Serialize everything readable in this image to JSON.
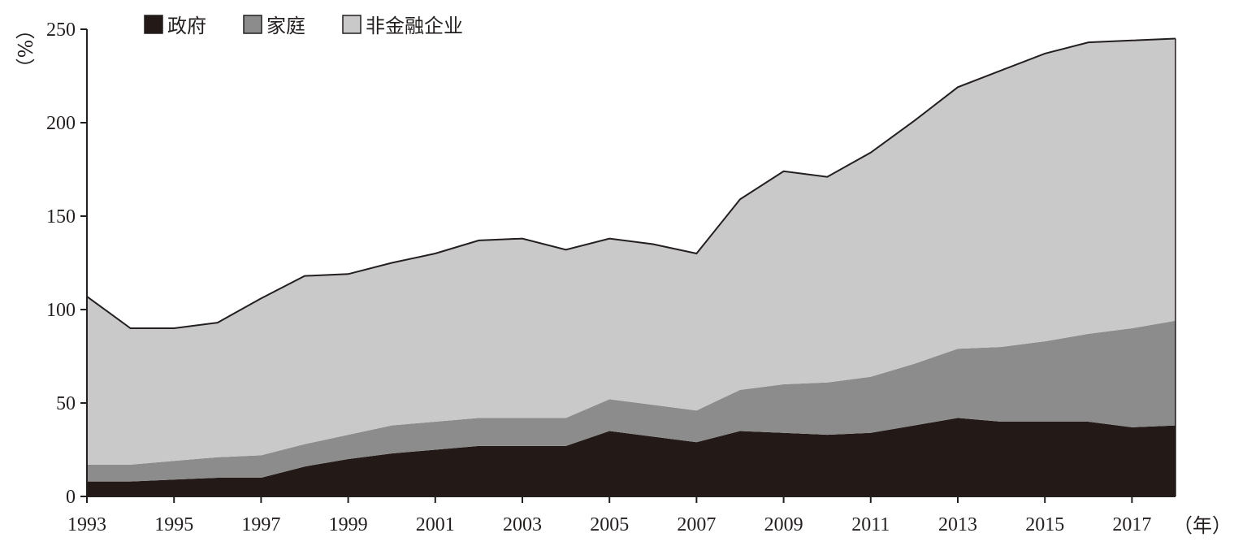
{
  "chart_data": {
    "type": "area",
    "stacked": true,
    "x": [
      1993,
      1994,
      1995,
      1996,
      1997,
      1998,
      1999,
      2000,
      2001,
      2002,
      2003,
      2004,
      2005,
      2006,
      2007,
      2008,
      2009,
      2010,
      2011,
      2012,
      2013,
      2014,
      2015,
      2016,
      2017,
      2018
    ],
    "series": [
      {
        "name": "政府",
        "color": "#231a18",
        "values": [
          8,
          8,
          9,
          10,
          10,
          16,
          20,
          23,
          25,
          27,
          27,
          27,
          35,
          32,
          29,
          35,
          34,
          33,
          34,
          38,
          42,
          40,
          40,
          40,
          37,
          38
        ]
      },
      {
        "name": "家庭",
        "color": "#8c8c8c",
        "values": [
          9,
          9,
          10,
          11,
          12,
          12,
          13,
          15,
          15,
          15,
          15,
          15,
          17,
          17,
          17,
          22,
          26,
          28,
          30,
          33,
          37,
          40,
          43,
          47,
          53,
          56
        ]
      },
      {
        "name": "非金融企业",
        "color": "#c9c9c9",
        "values": [
          90,
          73,
          71,
          72,
          84,
          90,
          86,
          87,
          90,
          95,
          96,
          90,
          86,
          86,
          84,
          102,
          114,
          110,
          120,
          130,
          140,
          148,
          154,
          156,
          154,
          151
        ]
      }
    ],
    "xticks": [
      "1993",
      "1995",
      "1997",
      "1999",
      "2001",
      "2003",
      "2005",
      "2007",
      "2009",
      "2011",
      "2013",
      "2015",
      "2017"
    ],
    "yticks": [
      "0",
      "50",
      "100",
      "150",
      "200",
      "250"
    ],
    "ylim": [
      0,
      250
    ],
    "xlim": [
      1993,
      2018
    ],
    "ylabel": "（%）",
    "xlabel": "（年）",
    "legend_position": "top-left",
    "grid": false
  }
}
